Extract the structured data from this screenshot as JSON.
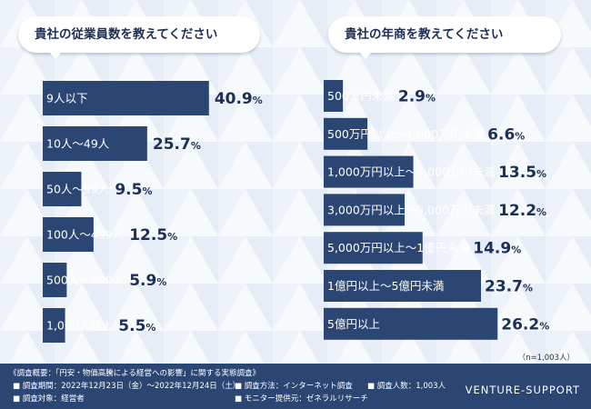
{
  "chart_data": [
    {
      "type": "bar",
      "orientation": "horizontal",
      "title": "貴社の従業員数を教えてください",
      "categories": [
        "9人以下",
        "10人〜49人",
        "50人〜99人",
        "100人〜499人",
        "500人〜999人",
        "1,000人以上"
      ],
      "values": [
        40.9,
        25.7,
        9.5,
        12.5,
        5.9,
        5.5
      ],
      "unit": "%",
      "xlim": [
        0,
        100
      ]
    },
    {
      "type": "bar",
      "orientation": "horizontal",
      "title": "貴社の年商を教えてください",
      "categories": [
        "500万円未満",
        "500万円以上〜1,000万円未満",
        "1,000万円以上〜3,000万円未満",
        "3,000万円以上〜5,000万円未満",
        "5,000万円以上〜1億円未満",
        "1億円以上〜5億円未満",
        "5億円以上"
      ],
      "values": [
        2.9,
        6.6,
        13.5,
        12.2,
        14.9,
        23.7,
        26.2
      ],
      "unit": "%",
      "xlim": [
        0,
        100
      ]
    }
  ],
  "sample_note": "（n=1,003人）",
  "footer": {
    "heading": "《調査概要：「円安・物価高騰による経営への影響」に関する実態調査》",
    "period": "■ 調査期間：2022年12月23日（金）〜2022年12月24日（土）",
    "target": "■ 調査対象：経営者",
    "method": "■ 調査方法：インターネット調査",
    "provider": "■ モニター提供元：ゼネラルリサーチ",
    "count": "■ 調査人数：1,003人",
    "brand": "VENTURE-SUPPORT"
  },
  "colors": {
    "bar": "#2c4673",
    "text": "#1e2f55",
    "background": "#eef3f9",
    "footer": "#2c4673"
  }
}
